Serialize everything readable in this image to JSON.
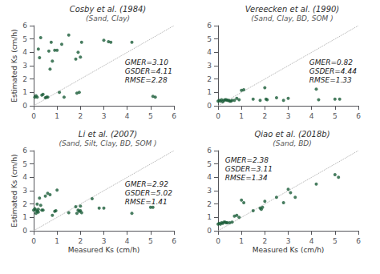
{
  "chart_data": [
    {
      "type": "scatter",
      "title": "Cosby et al. (1984)",
      "subtitle": "(Sand, Clay)",
      "annotations": [
        "GMER=3.10\nGSDER=4.11\nRMSE=2.28"
      ],
      "ylabel": "Estimated Ks (cm/h)",
      "xlim": [
        0,
        6
      ],
      "ylim": [
        0,
        6
      ],
      "xticks": [
        0,
        1,
        2,
        3,
        4,
        5,
        6
      ],
      "yticks": [
        0,
        1,
        2,
        3,
        4,
        5,
        6
      ],
      "grid": false,
      "series": [
        {
          "type": "line",
          "line_style": "dotted",
          "color": "#aaaaaa",
          "x": [
            0,
            6
          ],
          "values": [
            0,
            6
          ]
        },
        {
          "type": "scatter",
          "color": "#1a5c38",
          "x": [
            0.05,
            0.1,
            0.15,
            0.2,
            0.25,
            0.3,
            0.35,
            0.4,
            0.5,
            0.55,
            0.6,
            0.65,
            0.7,
            0.75,
            0.8,
            0.9,
            1.0,
            1.1,
            1.2,
            1.3,
            1.5,
            1.8,
            1.85,
            1.9,
            1.95,
            2.0,
            2.05,
            3.0,
            3.2,
            3.3,
            4.2,
            5.1,
            5.2
          ],
          "values": [
            0.65,
            0.75,
            0.65,
            4.25,
            3.6,
            5.1,
            0.8,
            0.85,
            0.6,
            0.65,
            0.65,
            4.1,
            2.75,
            4.75,
            3.35,
            4.15,
            4.15,
            1.0,
            4.6,
            0.65,
            5.3,
            3.5,
            0.95,
            4.0,
            1.0,
            3.65,
            4.75,
            4.9,
            4.8,
            4.75,
            4.75,
            0.7,
            0.65
          ]
        }
      ]
    },
    {
      "type": "scatter",
      "title": "Vereecken et al. (1990)",
      "subtitle": "(Sand, Clay, BD, SOM )",
      "annotations": [
        "GMER=0.82\nGSDER=4.44\nRMSE=1.33"
      ],
      "xlim": [
        0,
        6
      ],
      "ylim": [
        0,
        6
      ],
      "xticks": [
        0,
        1,
        2,
        3,
        4,
        5,
        6
      ],
      "yticks": [
        0,
        1,
        2,
        3,
        4,
        5,
        6
      ],
      "grid": false,
      "series": [
        {
          "type": "line",
          "line_style": "dotted",
          "color": "#aaaaaa",
          "x": [
            0,
            6
          ],
          "values": [
            0,
            6
          ]
        },
        {
          "type": "scatter",
          "color": "#1a5c38",
          "x": [
            0.0,
            0.05,
            0.1,
            0.15,
            0.2,
            0.25,
            0.3,
            0.35,
            0.4,
            0.45,
            0.5,
            0.55,
            0.6,
            0.7,
            0.8,
            0.9,
            1.0,
            1.1,
            1.5,
            1.8,
            2.0,
            2.05,
            2.1,
            2.5,
            2.8,
            3.0,
            4.2,
            4.3,
            5.0,
            5.2
          ],
          "values": [
            0.35,
            0.4,
            0.35,
            0.45,
            0.3,
            0.4,
            0.45,
            0.45,
            0.4,
            0.4,
            0.35,
            0.35,
            0.4,
            0.4,
            0.55,
            0.45,
            1.15,
            1.2,
            0.5,
            0.4,
            1.35,
            0.5,
            0.45,
            0.6,
            0.4,
            0.55,
            1.25,
            0.45,
            0.5,
            0.5
          ]
        }
      ]
    },
    {
      "type": "scatter",
      "title": "Li et al. (2007)",
      "subtitle": "(Sand, Silt, Clay, BD, SOM )",
      "annotations": [
        "GMER=2.92\nGSDER=5.02\nRMSE=1.41"
      ],
      "xlabel": "Measured Ks (cm/h)",
      "ylabel": "Estimated Ks (cm/h)",
      "xlim": [
        0,
        6
      ],
      "ylim": [
        0,
        6
      ],
      "xticks": [
        0,
        1,
        2,
        3,
        4,
        5,
        6
      ],
      "yticks": [
        0,
        1,
        2,
        3,
        4,
        5,
        6
      ],
      "grid": false,
      "series": [
        {
          "type": "line",
          "line_style": "dotted",
          "color": "#aaaaaa",
          "x": [
            0,
            6
          ],
          "values": [
            0,
            6
          ]
        },
        {
          "type": "scatter",
          "color": "#1a5c38",
          "x": [
            0.0,
            0.05,
            0.1,
            0.1,
            0.15,
            0.15,
            0.2,
            0.2,
            0.25,
            0.3,
            0.35,
            0.4,
            0.5,
            0.6,
            0.7,
            0.8,
            0.9,
            0.95,
            1.0,
            1.5,
            1.8,
            1.85,
            1.9,
            1.95,
            2.0,
            2.0,
            2.05,
            2.5,
            2.8,
            3.0,
            4.2,
            5.0,
            5.1
          ],
          "values": [
            1.55,
            1.65,
            1.55,
            1.3,
            1.45,
            2.0,
            1.6,
            1.4,
            2.45,
            1.9,
            1.55,
            1.55,
            2.6,
            2.8,
            2.7,
            1.15,
            1.45,
            1.5,
            3.05,
            1.35,
            1.8,
            1.3,
            1.55,
            1.45,
            1.5,
            1.85,
            1.35,
            2.4,
            1.7,
            1.7,
            1.3,
            1.75,
            1.75
          ]
        }
      ]
    },
    {
      "type": "scatter",
      "title": "Qiao et al. (2018b)",
      "subtitle": "(Sand, BD)",
      "annotations": [
        "GMER=2.38\nGSDER=3.11\nRMSE=1.34"
      ],
      "xlabel": "Measured Ks (cm/h)",
      "xlim": [
        0,
        6
      ],
      "ylim": [
        0,
        6
      ],
      "xticks": [
        0,
        1,
        2,
        3,
        4,
        5,
        6
      ],
      "yticks": [
        0,
        1,
        2,
        3,
        4,
        5,
        6
      ],
      "grid": false,
      "series": [
        {
          "type": "line",
          "line_style": "dotted",
          "color": "#aaaaaa",
          "x": [
            0,
            6
          ],
          "values": [
            0,
            6
          ]
        },
        {
          "type": "scatter",
          "color": "#1a5c38",
          "x": [
            0.0,
            0.05,
            0.1,
            0.15,
            0.2,
            0.25,
            0.3,
            0.35,
            0.4,
            0.5,
            0.6,
            0.7,
            0.8,
            0.9,
            1.0,
            1.1,
            1.5,
            1.8,
            1.85,
            1.9,
            2.0,
            2.5,
            2.8,
            3.0,
            3.1,
            3.3,
            4.2,
            5.0,
            5.15
          ],
          "values": [
            0.5,
            0.55,
            0.5,
            0.6,
            0.55,
            0.65,
            0.65,
            0.6,
            0.6,
            0.6,
            0.65,
            1.1,
            1.15,
            1.0,
            2.3,
            2.1,
            1.5,
            1.7,
            1.6,
            1.75,
            2.2,
            2.5,
            2.1,
            3.1,
            2.85,
            2.5,
            3.5,
            4.2,
            4.0
          ]
        }
      ]
    }
  ]
}
